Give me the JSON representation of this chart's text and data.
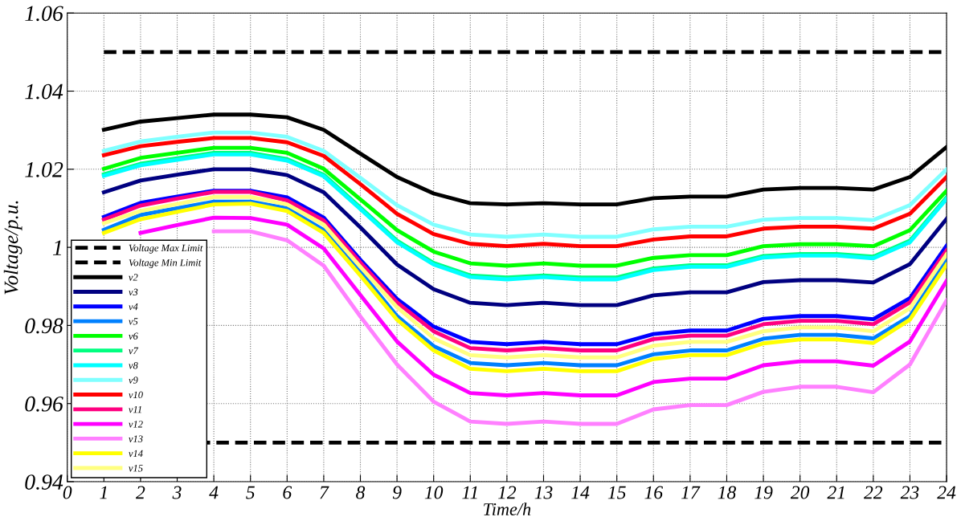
{
  "chart_data": {
    "type": "line",
    "xlabel": "Time/h",
    "ylabel": "Voltage/p.u.",
    "x": [
      1,
      2,
      3,
      4,
      5,
      6,
      7,
      8,
      9,
      10,
      11,
      12,
      13,
      14,
      15,
      16,
      17,
      18,
      19,
      20,
      21,
      22,
      23,
      24
    ],
    "xlim": [
      0,
      24
    ],
    "xticks": [
      0,
      1,
      2,
      3,
      4,
      5,
      6,
      7,
      8,
      9,
      10,
      11,
      12,
      13,
      14,
      15,
      16,
      17,
      18,
      19,
      20,
      21,
      22,
      23,
      24
    ],
    "ylim": [
      0.94,
      1.06
    ],
    "yticks": [
      0.94,
      0.96,
      0.98,
      {
        "value": 1.0,
        "label": "1"
      },
      1.02,
      1.04,
      1.06
    ],
    "grid": true,
    "legend": "bottom left",
    "line_style": "solid",
    "marker": "none",
    "ref_lines": [
      {
        "axis": "y",
        "value": 1.05,
        "label": "Voltage Max Limit",
        "color": "#000000",
        "line_style": "dashed"
      },
      {
        "axis": "y",
        "value": 0.95,
        "label": "Voltage Min Limit",
        "color": "#000000",
        "line_style": "dashed"
      }
    ],
    "series": [
      {
        "name": "v2",
        "color": "#000000",
        "values": [
          1.0301,
          1.0322,
          1.0331,
          1.034,
          1.034,
          1.0333,
          1.0301,
          1.024,
          1.018,
          1.0138,
          1.0113,
          1.011,
          1.0113,
          1.011,
          1.011,
          1.0126,
          1.013,
          1.013,
          1.0148,
          1.0152,
          1.0152,
          1.0148,
          1.018,
          1.0257
        ]
      },
      {
        "name": "v3",
        "color": "#000080",
        "values": [
          1.0141,
          1.0171,
          1.0186,
          1.02,
          1.02,
          1.0185,
          1.0141,
          1.0051,
          0.9956,
          0.9893,
          0.9858,
          0.9852,
          0.9858,
          0.9852,
          0.9852,
          0.9877,
          0.9885,
          0.9885,
          0.9911,
          0.9916,
          0.9916,
          0.991,
          0.9957,
          1.0073
        ]
      },
      {
        "name": "v4",
        "color": "#0000ff",
        "values": [
          1.0078,
          1.0114,
          1.013,
          1.0145,
          1.0145,
          1.0128,
          1.0076,
          0.9968,
          0.9868,
          0.9797,
          0.9758,
          0.9752,
          0.9758,
          0.9752,
          0.9752,
          0.9778,
          0.9787,
          0.9787,
          0.9817,
          0.9824,
          0.9824,
          0.9816,
          0.987,
          1.0004
        ]
      },
      {
        "name": "v5",
        "color": "#0080ff",
        "values": [
          1.0045,
          1.0083,
          1.01,
          1.0117,
          1.0117,
          1.01,
          1.0044,
          0.9938,
          0.9824,
          0.9747,
          0.9704,
          0.9698,
          0.9704,
          0.9698,
          0.9698,
          0.9726,
          0.9736,
          0.9736,
          0.9766,
          0.9776,
          0.9776,
          0.9767,
          0.9824,
          0.9967
        ]
      },
      {
        "name": "v6",
        "color": "#00ff00",
        "values": [
          1.0201,
          1.0229,
          1.0242,
          1.0255,
          1.0255,
          1.0242,
          1.0201,
          1.0123,
          1.0044,
          0.9989,
          0.9959,
          0.9953,
          0.9959,
          0.9953,
          0.9953,
          0.9973,
          0.998,
          0.998,
          1.0003,
          1.0008,
          1.0008,
          1.0003,
          1.0044,
          1.0145
        ]
      },
      {
        "name": "v7",
        "color": "#00ff80",
        "values": [
          1.0187,
          1.0214,
          1.0228,
          1.0242,
          1.0242,
          1.0226,
          1.0186,
          1.0102,
          1.0017,
          0.996,
          0.9928,
          0.9923,
          0.9928,
          0.9923,
          0.9923,
          0.9946,
          0.9954,
          0.9954,
          0.9978,
          0.9983,
          0.9983,
          0.9976,
          1.0017,
          1.0128
        ]
      },
      {
        "name": "v8",
        "color": "#00ffff",
        "values": [
          1.0183,
          1.021,
          1.0224,
          1.0238,
          1.0238,
          1.0222,
          1.0182,
          1.0098,
          1.0013,
          0.9956,
          0.9924,
          0.9918,
          0.9924,
          0.9918,
          0.9918,
          0.9942,
          0.995,
          0.995,
          0.9974,
          0.9979,
          0.9979,
          0.9972,
          1.0013,
          1.0124
        ]
      },
      {
        "name": "v9",
        "color": "#80ffff",
        "values": [
          1.0247,
          1.0271,
          1.0283,
          1.0294,
          1.0294,
          1.0283,
          1.0247,
          1.0178,
          1.0108,
          1.0058,
          1.0033,
          1.0027,
          1.0033,
          1.0027,
          1.0027,
          1.0046,
          1.0053,
          1.0053,
          1.0071,
          1.0075,
          1.0075,
          1.007,
          1.0108,
          1.02
        ]
      },
      {
        "name": "v10",
        "color": "#ff0000",
        "values": [
          1.0236,
          1.0259,
          1.027,
          1.028,
          1.028,
          1.0269,
          1.0234,
          1.0162,
          1.0086,
          1.0034,
          1.0009,
          1.0003,
          1.0009,
          1.0003,
          1.0003,
          1.002,
          1.0028,
          1.0028,
          1.0048,
          1.0053,
          1.0053,
          1.0048,
          1.0086,
          1.018
        ]
      },
      {
        "name": "v11",
        "color": "#ff0080",
        "values": [
          1.0071,
          1.0107,
          1.0125,
          1.0142,
          1.0142,
          1.012,
          1.0069,
          0.9961,
          0.9859,
          0.9785,
          0.9742,
          0.9736,
          0.9742,
          0.9736,
          0.9736,
          0.9765,
          0.9774,
          0.9774,
          0.9803,
          0.9812,
          0.9812,
          0.9803,
          0.9859,
          0.9992
        ]
      },
      {
        "name": "v12",
        "color": "#ff00ff",
        "values": [
          null,
          1.0037,
          1.0057,
          1.0076,
          1.0075,
          1.0058,
          0.9997,
          0.9878,
          0.9759,
          0.9674,
          0.9627,
          0.9621,
          0.9627,
          0.9621,
          0.9621,
          0.9655,
          0.9664,
          0.9664,
          0.9698,
          0.9708,
          0.9708,
          0.9697,
          0.9759,
          0.9914
        ]
      },
      {
        "name": "v13",
        "color": "#ff80ff",
        "values": [
          null,
          null,
          null,
          1.0041,
          1.0041,
          1.0018,
          0.9953,
          0.9823,
          0.97,
          0.9605,
          0.9554,
          0.9548,
          0.9554,
          0.9548,
          0.9548,
          0.9585,
          0.9596,
          0.9596,
          0.963,
          0.9643,
          0.9643,
          0.9629,
          0.97,
          0.9864
        ]
      },
      {
        "name": "v14",
        "color": "#ffff00",
        "values": [
          1.0037,
          1.0072,
          1.0091,
          1.011,
          1.0112,
          1.0093,
          1.0037,
          0.9928,
          0.9815,
          0.9736,
          0.9689,
          0.9683,
          0.9689,
          0.9683,
          0.9683,
          0.9714,
          0.9724,
          0.9724,
          0.9754,
          0.9764,
          0.9764,
          0.9755,
          0.9815,
          0.9956
        ]
      },
      {
        "name": "v15",
        "color": "#ffff80",
        "values": [
          1.0062,
          1.0093,
          1.0111,
          1.0129,
          1.0129,
          1.011,
          1.0058,
          0.995,
          0.9847,
          0.9767,
          0.9724,
          0.9718,
          0.9724,
          0.9718,
          0.9718,
          0.9748,
          0.9758,
          0.9758,
          0.9785,
          0.9795,
          0.9795,
          0.9785,
          0.9844,
          0.9982
        ]
      }
    ]
  }
}
